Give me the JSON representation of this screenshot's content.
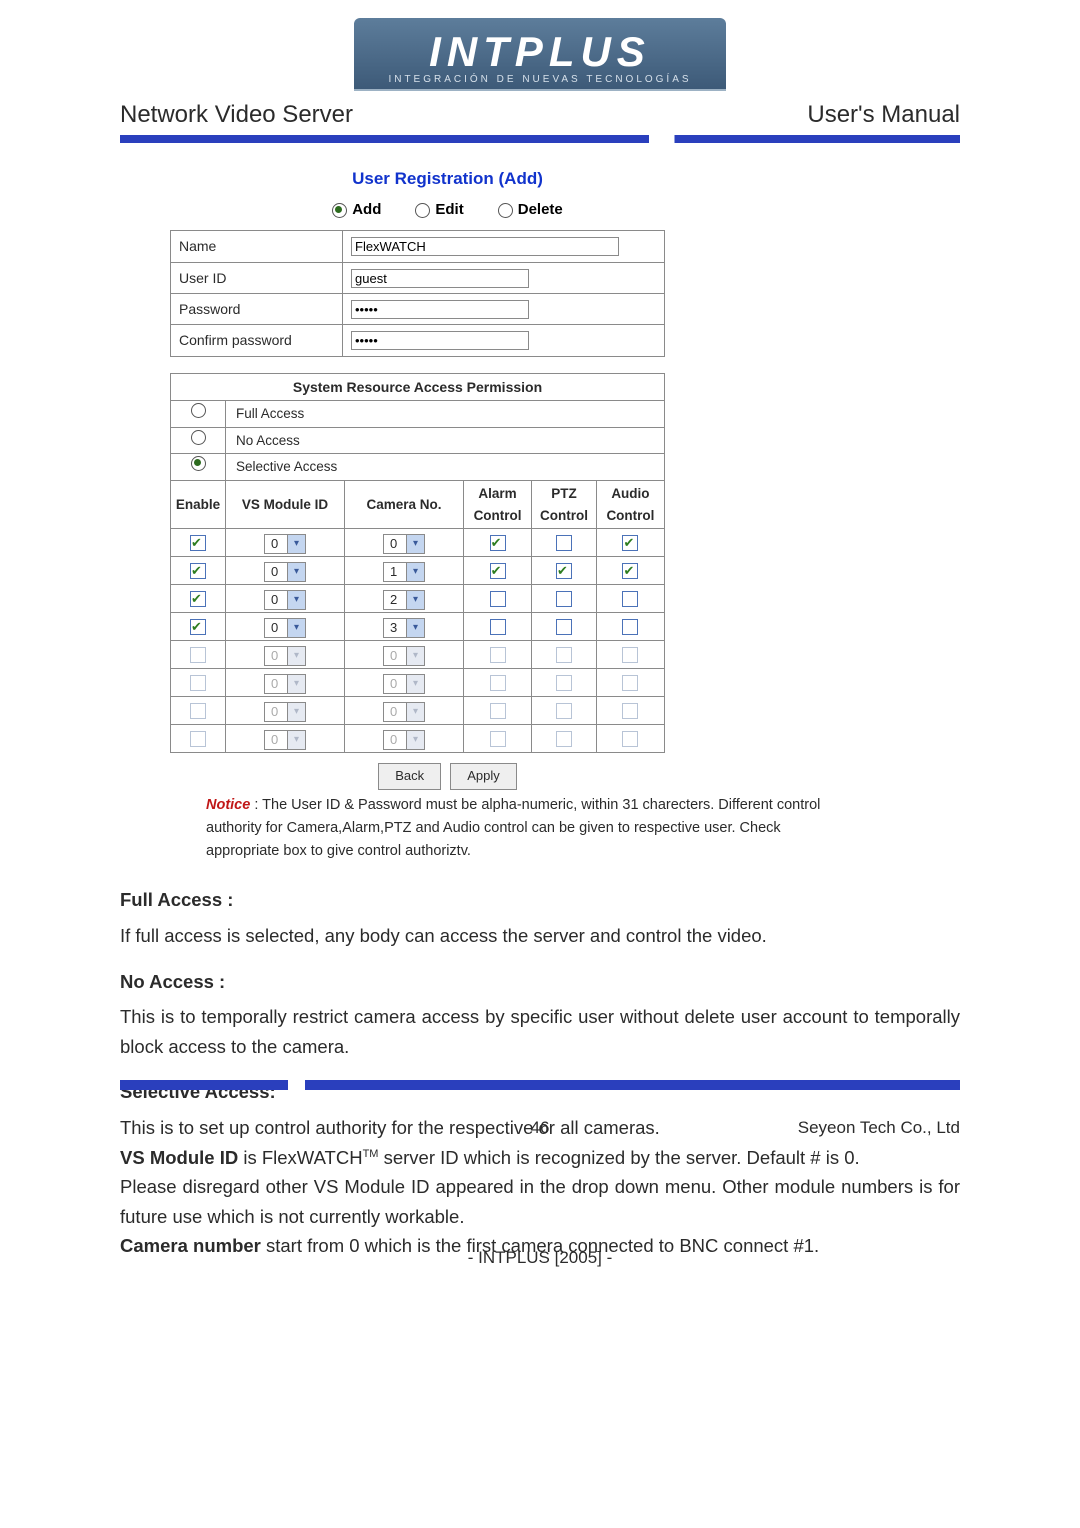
{
  "brand": {
    "name": "INTPLUS",
    "tagline": "INTEGRACIÓN DE NUEVAS TECNOLOGÍAS"
  },
  "header": {
    "left": "Network Video Server",
    "right": "User's Manual"
  },
  "screenshot": {
    "title": "User Registration (Add)",
    "modes": {
      "add": "Add",
      "edit": "Edit",
      "delete": "Delete",
      "selected": "add"
    },
    "form": {
      "name_label": "Name",
      "name_value": "FlexWATCH",
      "userid_label": "User ID",
      "userid_value": "guest",
      "password_label": "Password",
      "password_value": "•••••",
      "confirm_label": "Confirm password",
      "confirm_value": "•••••"
    },
    "perm": {
      "title": "System Resource Access Permission",
      "options": {
        "full": "Full Access",
        "none": "No Access",
        "sel": "Selective Access",
        "selected": "sel"
      },
      "cols": {
        "enable": "Enable",
        "vsmod": "VS Module ID",
        "cam": "Camera No.",
        "alarm": "Alarm Control",
        "ptz": "PTZ Control",
        "audio": "Audio Control"
      },
      "rows": [
        {
          "enable": true,
          "disabled": false,
          "vs": "0",
          "cam": "0",
          "alarm": true,
          "ptz": false,
          "audio": true
        },
        {
          "enable": true,
          "disabled": false,
          "vs": "0",
          "cam": "1",
          "alarm": true,
          "ptz": true,
          "audio": true
        },
        {
          "enable": true,
          "disabled": false,
          "vs": "0",
          "cam": "2",
          "alarm": false,
          "ptz": false,
          "audio": false
        },
        {
          "enable": true,
          "disabled": false,
          "vs": "0",
          "cam": "3",
          "alarm": false,
          "ptz": false,
          "audio": false
        },
        {
          "enable": false,
          "disabled": true,
          "vs": "0",
          "cam": "0",
          "alarm": false,
          "ptz": false,
          "audio": false
        },
        {
          "enable": false,
          "disabled": true,
          "vs": "0",
          "cam": "0",
          "alarm": false,
          "ptz": false,
          "audio": false
        },
        {
          "enable": false,
          "disabled": true,
          "vs": "0",
          "cam": "0",
          "alarm": false,
          "ptz": false,
          "audio": false
        },
        {
          "enable": false,
          "disabled": true,
          "vs": "0",
          "cam": "0",
          "alarm": false,
          "ptz": false,
          "audio": false
        }
      ],
      "buttons": {
        "back": "Back",
        "apply": "Apply"
      }
    },
    "notice": {
      "label": "Notice",
      "text": ": The User ID & Password must be alpha-numeric, within 31 charecters. Different control authority for Camera,Alarm,PTZ and Audio control can be given to respective user. Check appropriate box to give control authoriztv."
    }
  },
  "body": {
    "full_h": "Full Access :",
    "full_t": "If full access is selected, any body can access the server and control the video.",
    "none_h": "No Access :",
    "none_t": "This is to temporally restrict camera access by specific user without delete user account to temporally block access to the camera.",
    "sel_h": "Selective Access:",
    "sel_t1": "This is to set up control authority for the respective or all cameras.",
    "sel_t2a": "VS Module ID",
    "sel_t2b": " is FlexWATCH",
    "sel_t2c": " server ID which is recognized by the server. Default # is 0.",
    "sel_t3": "Please disregard other VS Module ID appeared in the drop down menu. Other module numbers is for future use which is not currently workable.",
    "sel_t4a": "Camera number",
    "sel_t4b": " start from 0 which is the first camera connected to BNC connect #1."
  },
  "footer": {
    "page": "46",
    "company": "Seyeon Tech Co., Ltd",
    "bottom": "- INTPLUS [2005] -"
  }
}
